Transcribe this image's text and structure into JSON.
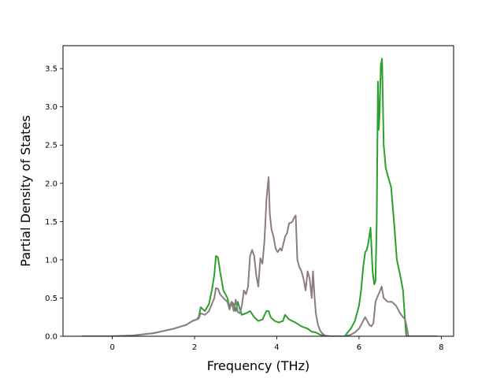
{
  "chart_data": {
    "type": "line",
    "title": "",
    "xlabel": "Frequency (THz)",
    "ylabel": "Partial Density of States",
    "xlim": [
      -1.2,
      8.3
    ],
    "ylim": [
      0,
      3.8
    ],
    "xticks": [
      0,
      2,
      4,
      6,
      8
    ],
    "yticks": [
      0.0,
      0.5,
      1.0,
      1.5,
      2.0,
      2.5,
      3.0,
      3.5
    ],
    "xtick_labels": [
      "0",
      "2",
      "4",
      "6",
      "8"
    ],
    "ytick_labels": [
      "0.0",
      "0.5",
      "1.0",
      "1.5",
      "2.0",
      "2.5",
      "3.0",
      "3.5"
    ],
    "grid": false,
    "legend": "none",
    "series": [
      {
        "color": "#2ca02c",
        "x": [
          -0.75,
          0.0,
          0.5,
          1.0,
          1.5,
          1.8,
          1.95,
          2.05,
          2.1,
          2.15,
          2.25,
          2.35,
          2.42,
          2.48,
          2.52,
          2.57,
          2.62,
          2.7,
          2.8,
          2.85,
          2.9,
          2.95,
          3.0,
          3.05,
          3.1,
          3.15,
          3.25,
          3.35,
          3.45,
          3.55,
          3.65,
          3.75,
          3.8,
          3.85,
          3.95,
          4.05,
          4.15,
          4.2,
          4.3,
          4.45,
          4.6,
          4.75,
          4.85,
          4.95,
          5.05,
          5.15,
          5.3,
          5.5,
          5.65,
          5.8,
          5.9,
          6.0,
          6.05,
          6.1,
          6.15,
          6.18,
          6.22,
          6.28,
          6.33,
          6.37,
          6.4,
          6.43,
          6.46,
          6.48,
          6.5,
          6.53,
          6.56,
          6.6,
          6.65,
          6.7,
          6.78,
          6.85,
          6.92,
          7.0,
          7.07,
          7.12,
          7.15,
          7.2,
          7.5,
          7.9
        ],
        "y": [
          0.0,
          0.0,
          0.01,
          0.04,
          0.1,
          0.15,
          0.2,
          0.22,
          0.25,
          0.38,
          0.33,
          0.42,
          0.6,
          0.8,
          1.05,
          1.03,
          0.85,
          0.6,
          0.5,
          0.38,
          0.45,
          0.42,
          0.33,
          0.45,
          0.36,
          0.28,
          0.3,
          0.33,
          0.25,
          0.2,
          0.22,
          0.33,
          0.33,
          0.25,
          0.2,
          0.18,
          0.2,
          0.28,
          0.22,
          0.18,
          0.13,
          0.1,
          0.06,
          0.05,
          0.02,
          0.01,
          0.0,
          0.0,
          0.0,
          0.1,
          0.2,
          0.4,
          0.6,
          0.9,
          1.1,
          1.12,
          1.2,
          1.42,
          0.85,
          0.68,
          0.72,
          1.5,
          3.33,
          2.7,
          2.9,
          3.55,
          3.63,
          2.5,
          2.2,
          2.1,
          1.95,
          1.5,
          1.0,
          0.8,
          0.6,
          0.2,
          0.0,
          0.0,
          0.0,
          0.0
        ]
      },
      {
        "color": "#8c7c82",
        "x": [
          -0.75,
          0.0,
          0.5,
          1.0,
          1.5,
          1.8,
          1.95,
          2.05,
          2.1,
          2.15,
          2.25,
          2.35,
          2.42,
          2.48,
          2.52,
          2.57,
          2.62,
          2.7,
          2.8,
          2.85,
          2.9,
          2.95,
          3.0,
          3.05,
          3.1,
          3.15,
          3.2,
          3.25,
          3.3,
          3.35,
          3.4,
          3.45,
          3.5,
          3.55,
          3.6,
          3.65,
          3.7,
          3.75,
          3.8,
          3.83,
          3.87,
          3.92,
          3.97,
          4.02,
          4.08,
          4.12,
          4.2,
          4.25,
          4.3,
          4.33,
          4.38,
          4.42,
          4.46,
          4.5,
          4.55,
          4.6,
          4.65,
          4.7,
          4.75,
          4.8,
          4.85,
          4.88,
          4.92,
          4.95,
          5.0,
          5.05,
          5.1,
          5.15,
          5.2,
          5.3,
          5.5,
          5.65,
          5.8,
          5.9,
          6.0,
          6.05,
          6.1,
          6.15,
          6.2,
          6.25,
          6.3,
          6.35,
          6.4,
          6.45,
          6.5,
          6.55,
          6.6,
          6.7,
          6.8,
          6.9,
          7.0,
          7.07,
          7.12,
          7.15,
          7.2,
          7.5,
          7.9
        ],
        "y": [
          0.0,
          0.0,
          0.01,
          0.04,
          0.1,
          0.15,
          0.2,
          0.22,
          0.23,
          0.3,
          0.28,
          0.33,
          0.42,
          0.5,
          0.63,
          0.62,
          0.55,
          0.5,
          0.45,
          0.35,
          0.45,
          0.33,
          0.48,
          0.32,
          0.3,
          0.4,
          0.6,
          0.55,
          0.65,
          1.05,
          1.13,
          1.05,
          0.8,
          0.65,
          1.02,
          0.95,
          1.25,
          1.8,
          2.08,
          1.6,
          1.4,
          1.3,
          1.15,
          1.1,
          1.15,
          1.12,
          1.3,
          1.35,
          1.48,
          1.48,
          1.5,
          1.55,
          1.58,
          1.0,
          0.9,
          0.85,
          0.75,
          0.6,
          0.85,
          0.75,
          0.5,
          0.85,
          0.5,
          0.3,
          0.15,
          0.08,
          0.04,
          0.02,
          0.0,
          0.0,
          0.0,
          0.0,
          0.02,
          0.05,
          0.1,
          0.15,
          0.2,
          0.25,
          0.2,
          0.15,
          0.13,
          0.17,
          0.45,
          0.52,
          0.58,
          0.65,
          0.5,
          0.45,
          0.45,
          0.4,
          0.3,
          0.25,
          0.22,
          0.15,
          0.0,
          0.0,
          0.0
        ]
      }
    ]
  }
}
